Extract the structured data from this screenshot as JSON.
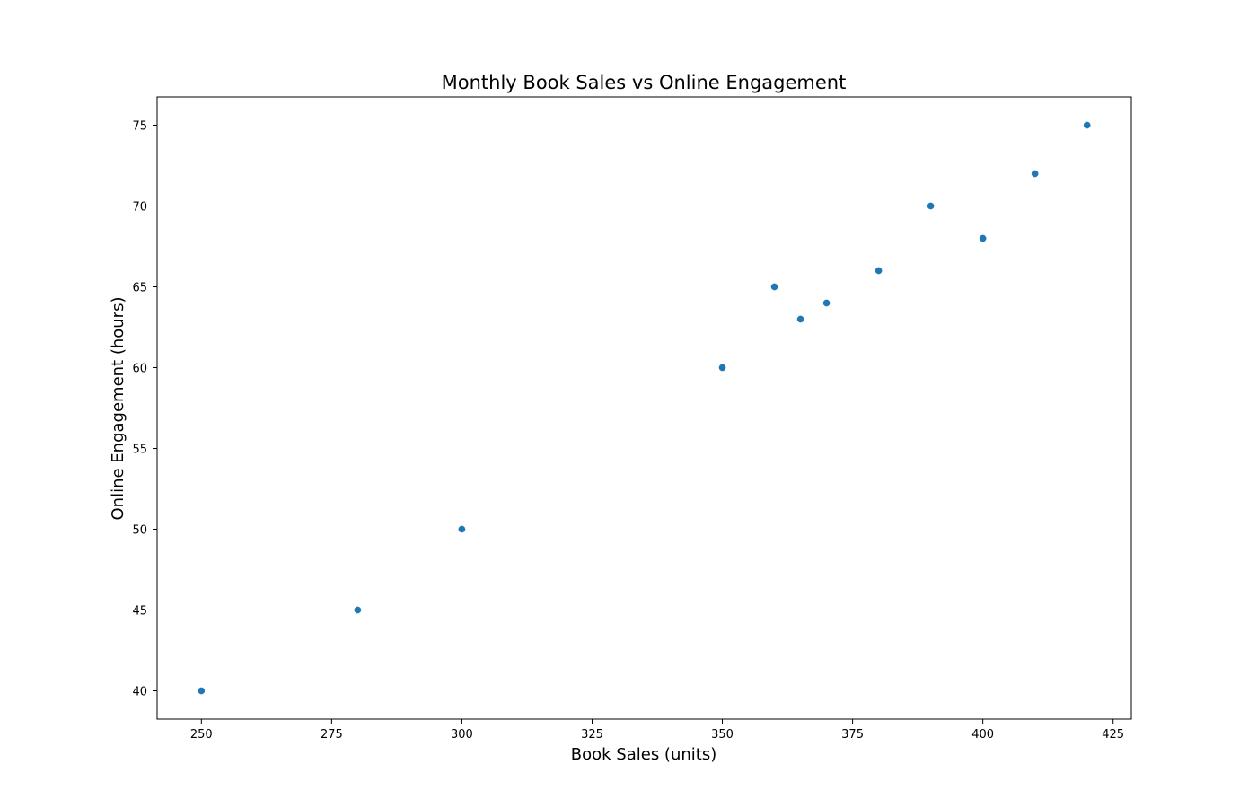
{
  "chart_data": {
    "type": "scatter",
    "title": "Monthly Book Sales vs Online Engagement",
    "xlabel": "Book Sales (units)",
    "ylabel": "Online Engagement (hours)",
    "xlim": [
      241.5,
      428.5
    ],
    "ylim": [
      38.25,
      76.75
    ],
    "xticks": [
      250,
      275,
      300,
      325,
      350,
      375,
      400,
      425
    ],
    "yticks": [
      40,
      45,
      50,
      55,
      60,
      65,
      70,
      75
    ],
    "grid": false,
    "marker_color": "#1f77b4",
    "series": [
      {
        "x": [
          250,
          280,
          300,
          350,
          360,
          365,
          370,
          380,
          390,
          400,
          410,
          420
        ],
        "y": [
          40,
          45,
          50,
          60,
          65,
          63,
          64,
          66,
          70,
          68,
          72,
          75
        ]
      }
    ]
  }
}
